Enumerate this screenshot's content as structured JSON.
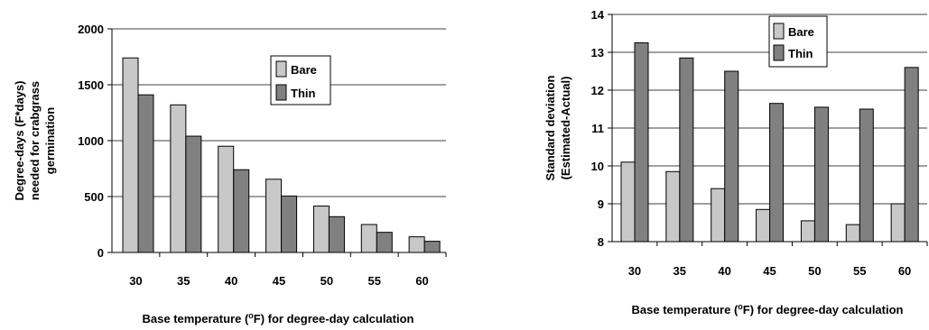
{
  "charts": {
    "legend_bare": "Bare",
    "legend_thin": "Thin",
    "xlabel_prefix": "Base temperature (",
    "xlabel_degree": "o",
    "xlabel_suffix": "F) for degree-day calculation"
  },
  "colors": {
    "bare": "#c8c8c8",
    "thin": "#808080"
  },
  "chart_data": [
    {
      "type": "bar",
      "categories": [
        "30",
        "35",
        "40",
        "45",
        "50",
        "55",
        "60"
      ],
      "series": [
        {
          "name": "Bare",
          "values": [
            1740,
            1320,
            950,
            655,
            415,
            250,
            140
          ]
        },
        {
          "name": "Thin",
          "values": [
            1410,
            1040,
            740,
            505,
            320,
            180,
            100
          ]
        }
      ],
      "ylim": [
        0,
        2000
      ],
      "yticks": [
        "0",
        "500",
        "1000",
        "1500",
        "2000"
      ],
      "ylabel_lines": [
        "Degree-days (F*days)",
        "needed for crabgrass",
        "germination"
      ],
      "grid": true,
      "legend": "upper-right"
    },
    {
      "type": "bar",
      "categories": [
        "30",
        "35",
        "40",
        "45",
        "50",
        "55",
        "60"
      ],
      "series": [
        {
          "name": "Bare",
          "values": [
            10.1,
            9.85,
            9.4,
            8.85,
            8.55,
            8.45,
            9.0
          ]
        },
        {
          "name": "Thin",
          "values": [
            13.25,
            12.85,
            12.5,
            11.65,
            11.55,
            11.5,
            12.6
          ]
        }
      ],
      "ylim": [
        8,
        14
      ],
      "yticks": [
        "8",
        "9",
        "10",
        "11",
        "12",
        "13",
        "14"
      ],
      "ylabel_lines": [
        "Standard deviation",
        "(Estimated-Actual)"
      ],
      "grid": true,
      "legend": "top-center"
    }
  ]
}
